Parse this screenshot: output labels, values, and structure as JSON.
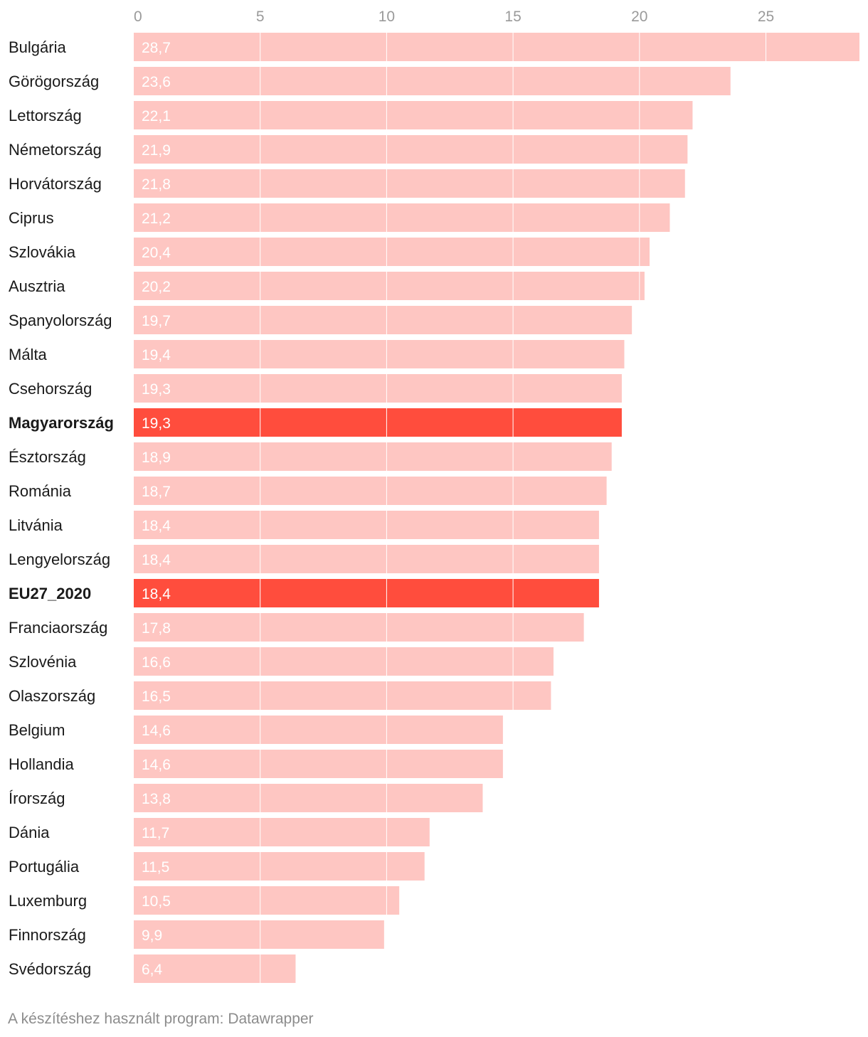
{
  "chart_data": {
    "type": "bar",
    "orientation": "horizontal",
    "categories": [
      "Bulgária",
      "Görögország",
      "Lettország",
      "Németország",
      "Horvátország",
      "Ciprus",
      "Szlovákia",
      "Ausztria",
      "Spanyolország",
      "Málta",
      "Csehország",
      "Magyarország",
      "Észtország",
      "Románia",
      "Litvánia",
      "Lengyelország",
      "EU27_2020",
      "Franciaország",
      "Szlovénia",
      "Olaszország",
      "Belgium",
      "Hollandia",
      "Írország",
      "Dánia",
      "Portugália",
      "Luxemburg",
      "Finnország",
      "Svédország"
    ],
    "values": [
      28.7,
      23.6,
      22.1,
      21.9,
      21.8,
      21.2,
      20.4,
      20.2,
      19.7,
      19.4,
      19.3,
      19.3,
      18.9,
      18.7,
      18.4,
      18.4,
      18.4,
      17.8,
      16.6,
      16.5,
      14.6,
      14.6,
      13.8,
      11.7,
      11.5,
      10.5,
      9.9,
      6.4
    ],
    "value_labels": [
      "28,7",
      "23,6",
      "22,1",
      "21,9",
      "21,8",
      "21,2",
      "20,4",
      "20,2",
      "19,7",
      "19,4",
      "19,3",
      "19,3",
      "18,9",
      "18,7",
      "18,4",
      "18,4",
      "18,4",
      "17,8",
      "16,6",
      "16,5",
      "14,6",
      "14,6",
      "13,8",
      "11,7",
      "11,5",
      "10,5",
      "9,9",
      "6,4"
    ],
    "highlighted": [
      "Magyarország",
      "EU27_2020"
    ],
    "x_ticks": [
      0,
      5,
      10,
      15,
      20,
      25
    ],
    "xlim": [
      0,
      28.7
    ],
    "grid": true,
    "title": "",
    "xlabel": "",
    "ylabel": ""
  },
  "colors": {
    "bar": "#fec6c2",
    "bar_highlight": "#ff4d3d",
    "gridline": "#ffffff",
    "label_on_bar": "#ffffff",
    "tick_label": "#9a9a9a",
    "category_label": "#1a1a1a",
    "footer_text": "#8c8c8c"
  },
  "footer": {
    "credit": "A készítéshez használt program: Datawrapper"
  }
}
